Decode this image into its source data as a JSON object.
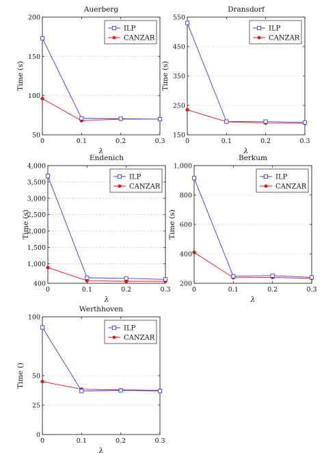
{
  "chart_data": [
    {
      "type": "line",
      "title": "Auerberg",
      "xlabel": "λ",
      "ylabel": "Time (s)",
      "x": [
        0,
        0.1,
        0.2,
        0.3
      ],
      "xticks": [
        "0",
        "0.1",
        "0.2",
        "0.3"
      ],
      "ylim": [
        50,
        200
      ],
      "yticks": [
        50,
        100,
        150,
        200
      ],
      "yticklabels": [
        "50",
        "100",
        "150",
        "200"
      ],
      "series": [
        {
          "name": "ILP",
          "color": "#3a3ad6",
          "marker": "square-open",
          "values": [
            173,
            71,
            70.5,
            70
          ]
        },
        {
          "name": "CANZAR",
          "color": "#e0131d",
          "marker": "circle-filled",
          "values": [
            96,
            68,
            70,
            70
          ]
        }
      ],
      "legend": "top-right",
      "grid": "horizontal-dashed"
    },
    {
      "type": "line",
      "title": "Dransdorf",
      "xlabel": "λ",
      "ylabel": "Time (s)",
      "x": [
        0,
        0.1,
        0.2,
        0.3
      ],
      "xticks": [
        "0",
        "0.1",
        "0.2",
        "0.3"
      ],
      "ylim": [
        150,
        550
      ],
      "yticks": [
        150,
        250,
        350,
        450,
        550
      ],
      "yticklabels": [
        "150",
        "250",
        "350",
        "450",
        "550"
      ],
      "series": [
        {
          "name": "ILP",
          "color": "#3a3ad6",
          "marker": "square-open",
          "values": [
            530,
            195,
            195,
            192
          ]
        },
        {
          "name": "CANZAR",
          "color": "#e0131d",
          "marker": "circle-filled",
          "values": [
            235,
            194,
            190,
            189
          ]
        }
      ],
      "legend": "top-right",
      "grid": "horizontal-dashed"
    },
    {
      "type": "line",
      "title": "Endenich",
      "xlabel": "λ",
      "ylabel": "Time (s)",
      "x": [
        0,
        0.1,
        0.2,
        0.3
      ],
      "xticks": [
        "0",
        "0.1",
        "0.2",
        "0.3"
      ],
      "ylim": [
        400,
        4000
      ],
      "yticks": [
        400,
        1000,
        1500,
        2000,
        2500,
        3000,
        3500,
        4000
      ],
      "yticklabels": [
        "400",
        "1,000",
        "1,500",
        "2,000",
        "2,500",
        "3,000",
        "3,500",
        "4,000"
      ],
      "series": [
        {
          "name": "ILP",
          "color": "#3a3ad6",
          "marker": "square-open",
          "values": [
            3680,
            570,
            550,
            520
          ]
        },
        {
          "name": "CANZAR",
          "color": "#e0131d",
          "marker": "circle-filled",
          "values": [
            880,
            480,
            460,
            460
          ]
        }
      ],
      "legend": "top-right",
      "grid": "horizontal-dashed"
    },
    {
      "type": "line",
      "title": "Berkum",
      "xlabel": "λ",
      "ylabel": "Time (s)",
      "x": [
        0,
        0.1,
        0.2,
        0.3
      ],
      "xticks": [
        "0",
        "0.1",
        "0.2",
        "0.3"
      ],
      "ylim": [
        200,
        1000
      ],
      "yticks": [
        200,
        400,
        600,
        800,
        1000
      ],
      "yticklabels": [
        "200",
        "400",
        "600",
        "800",
        "1,000"
      ],
      "series": [
        {
          "name": "ILP",
          "color": "#3a3ad6",
          "marker": "square-open",
          "values": [
            915,
            248,
            252,
            240
          ]
        },
        {
          "name": "CANZAR",
          "color": "#e0131d",
          "marker": "circle-filled",
          "values": [
            410,
            238,
            240,
            233
          ]
        }
      ],
      "legend": "top-right",
      "grid": "horizontal-dashed"
    },
    {
      "type": "line",
      "title": "Werthhoven",
      "xlabel": "λ",
      "ylabel": "Time ()",
      "x": [
        0,
        0.1,
        0.2,
        0.3
      ],
      "xticks": [
        "0",
        "0.1",
        "0.2",
        "0.3"
      ],
      "ylim": [
        0,
        100
      ],
      "yticks": [
        0,
        25,
        50,
        100
      ],
      "yticklabels": [
        "0",
        "25",
        "50",
        "100"
      ],
      "series": [
        {
          "name": "ILP",
          "color": "#3a3ad6",
          "marker": "square-open",
          "values": [
            91,
            37,
            37.5,
            37
          ]
        },
        {
          "name": "CANZAR",
          "color": "#e0131d",
          "marker": "circle-filled",
          "values": [
            45,
            38.5,
            38,
            37.5
          ]
        }
      ],
      "legend": "top-right",
      "grid": "horizontal-dashed"
    }
  ]
}
